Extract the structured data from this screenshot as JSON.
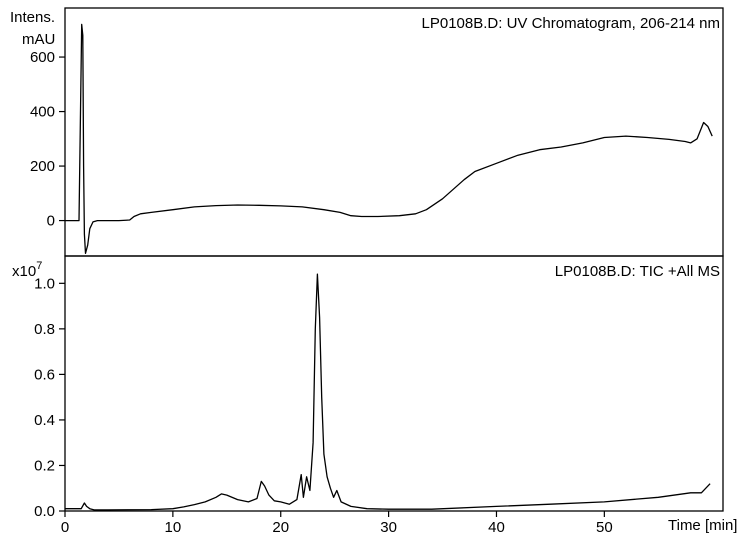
{
  "chart_data": [
    {
      "type": "line",
      "id": "uv",
      "title": "LP0108B.D: UV Chromatogram, 206-214 nm",
      "ylabel_line1": "Intens.",
      "ylabel_line2": "mAU",
      "xlim": [
        0,
        61
      ],
      "ylim": [
        -130,
        780
      ],
      "yticks": [
        0,
        200,
        400,
        600
      ],
      "ytick_labels": [
        "0",
        "200",
        "400",
        "600"
      ],
      "series": [
        {
          "x": [
            0,
            1.3,
            1.55,
            1.65,
            1.72,
            1.8,
            1.9,
            2.1,
            2.3,
            2.6,
            3.0,
            4,
            5,
            6,
            6.4,
            7,
            8,
            10,
            12,
            14,
            16,
            18,
            20,
            22,
            24,
            25.5,
            26.5,
            27.5,
            29,
            31,
            32.5,
            33.5,
            35,
            37,
            38,
            40,
            42,
            44,
            46,
            48,
            50,
            52,
            54,
            56,
            57.5,
            58,
            58.6,
            59.2,
            59.6,
            60
          ],
          "y": [
            0,
            0,
            720,
            680,
            200,
            -50,
            -120,
            -90,
            -30,
            -5,
            0,
            0,
            0,
            2,
            15,
            25,
            30,
            40,
            50,
            55,
            57,
            56,
            54,
            50,
            40,
            30,
            18,
            15,
            15,
            18,
            25,
            40,
            80,
            150,
            180,
            210,
            240,
            260,
            270,
            285,
            305,
            310,
            305,
            298,
            290,
            285,
            300,
            360,
            345,
            310
          ]
        }
      ]
    },
    {
      "type": "line",
      "id": "tic",
      "title": "LP0108B.D: TIC +All MS",
      "ylabel_base": "x10",
      "ylabel_exp": "7",
      "xlabel": "Time [min]",
      "xlim": [
        0,
        61
      ],
      "ylim": [
        0,
        1.12
      ],
      "xticks": [
        0,
        10,
        20,
        30,
        40,
        50
      ],
      "xtick_labels": [
        "0",
        "10",
        "20",
        "30",
        "40",
        "50"
      ],
      "yticks": [
        0.0,
        0.2,
        0.4,
        0.6,
        0.8,
        1.0
      ],
      "ytick_labels": [
        "0.0",
        "0.2",
        "0.4",
        "0.6",
        "0.8",
        "1.0"
      ],
      "series": [
        {
          "x": [
            0,
            1.5,
            1.8,
            2.0,
            2.3,
            2.7,
            4,
            8,
            10,
            11,
            12,
            13,
            14,
            14.5,
            15,
            16,
            17,
            17.8,
            18.2,
            18.5,
            18.9,
            19.4,
            20,
            20.8,
            21.5,
            21.9,
            22.1,
            22.4,
            22.7,
            23.0,
            23.2,
            23.4,
            23.6,
            23.8,
            24.0,
            24.3,
            24.6,
            24.9,
            25.2,
            25.6,
            26.5,
            28,
            30,
            34,
            40,
            45,
            50,
            55,
            58,
            59,
            59.8
          ],
          "y": [
            0.01,
            0.01,
            0.035,
            0.02,
            0.01,
            0.005,
            0.005,
            0.006,
            0.01,
            0.018,
            0.028,
            0.04,
            0.06,
            0.075,
            0.07,
            0.05,
            0.04,
            0.055,
            0.13,
            0.11,
            0.07,
            0.045,
            0.04,
            0.03,
            0.05,
            0.16,
            0.06,
            0.15,
            0.09,
            0.3,
            0.8,
            1.04,
            0.85,
            0.5,
            0.25,
            0.15,
            0.1,
            0.06,
            0.09,
            0.04,
            0.02,
            0.01,
            0.008,
            0.008,
            0.02,
            0.03,
            0.04,
            0.06,
            0.08,
            0.08,
            0.12
          ]
        }
      ]
    }
  ]
}
